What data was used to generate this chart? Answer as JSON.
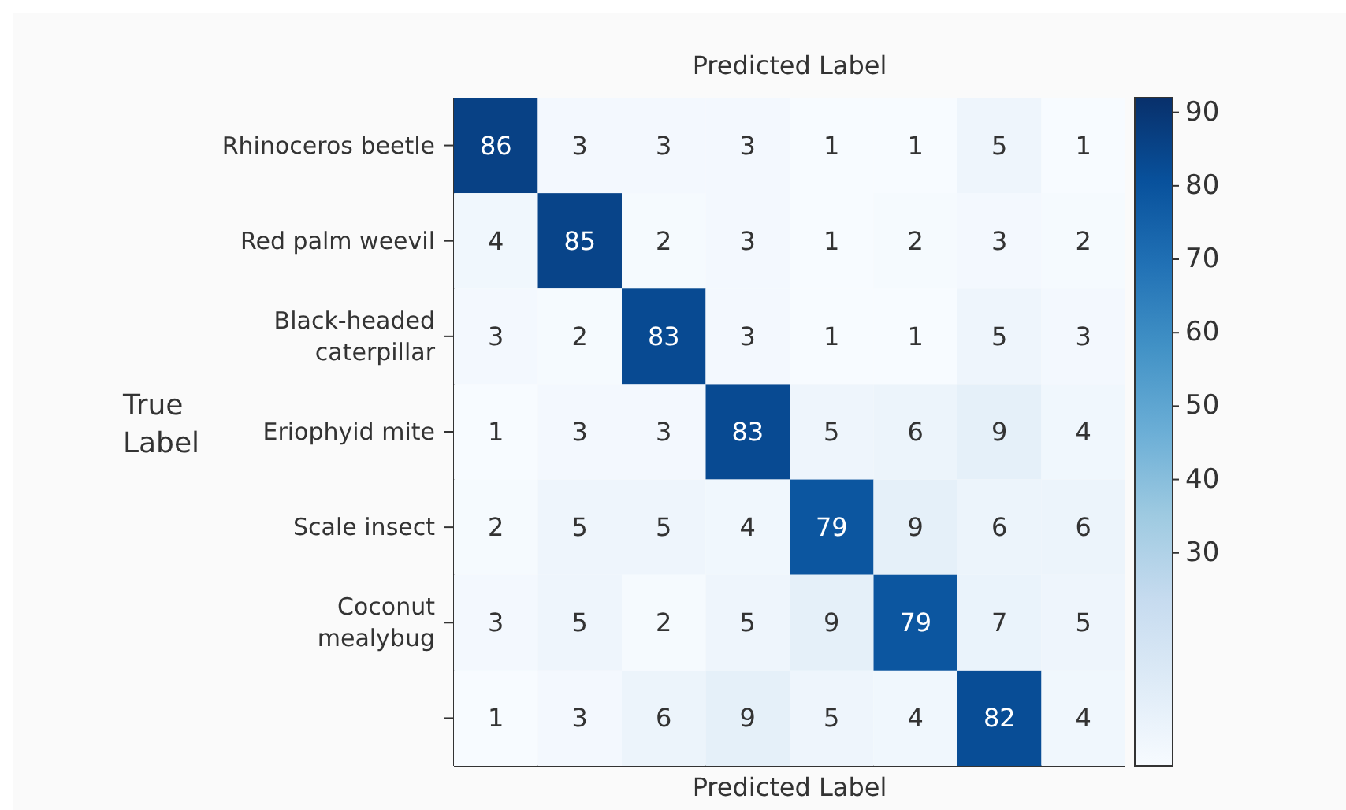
{
  "chart_data": {
    "type": "heatmap",
    "title": "Predicted Label",
    "xlabel": "Predicted Label",
    "ylabel": "True Label",
    "categories": [
      null,
      null,
      null,
      null,
      null,
      null,
      null,
      null
    ],
    "y_categories": [
      "Rhinoceros beetle",
      "Red palm weevil",
      "Black-headed\ncaterpillar",
      "Eriophyid mite",
      "Scale insect",
      "Coconut\nmealybug",
      null
    ],
    "cells": [
      [
        86,
        3,
        3,
        3,
        1,
        1,
        5,
        1
      ],
      [
        4,
        85,
        2,
        3,
        1,
        2,
        3,
        2
      ],
      [
        3,
        2,
        83,
        3,
        1,
        1,
        5,
        3
      ],
      [
        1,
        3,
        3,
        83,
        5,
        6,
        9,
        4
      ],
      [
        2,
        5,
        5,
        4,
        79,
        9,
        6,
        6
      ],
      [
        3,
        5,
        2,
        5,
        9,
        79,
        7,
        5
      ],
      [
        1,
        3,
        6,
        9,
        5,
        4,
        82,
        4
      ]
    ],
    "data_labels": true,
    "clim": [
      1,
      92
    ],
    "cticks": [
      30,
      40,
      50,
      60,
      70,
      80,
      90
    ]
  }
}
